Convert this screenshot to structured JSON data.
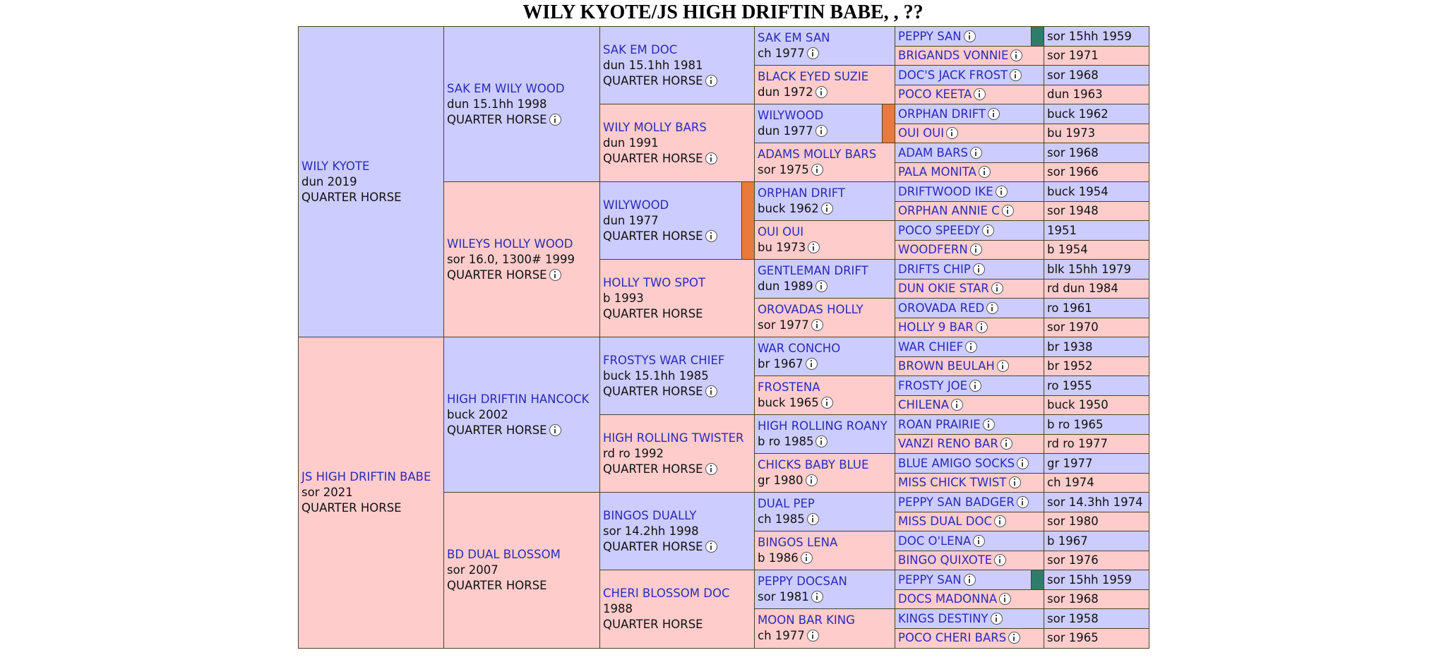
{
  "title": "WILY KYOTE/JS HIGH DRIFTIN BABE, , ??",
  "generations": [
    [
      {
        "name": "WILY KYOTE",
        "lines": [
          "dun 2019",
          "QUARTER HORSE"
        ],
        "info": false
      },
      {
        "name": "JS HIGH DRIFTIN BABE",
        "lines": [
          "sor 2021",
          "QUARTER HORSE"
        ],
        "info": false
      }
    ],
    [
      {
        "name": "SAK EM WILY WOOD",
        "lines": [
          "dun 15.1hh 1998",
          "QUARTER HORSE"
        ],
        "info": true
      },
      {
        "name": "WILEYS HOLLY WOOD",
        "lines": [
          "sor 16.0, 1300# 1999",
          "QUARTER HORSE"
        ],
        "info": true
      },
      {
        "name": "HIGH DRIFTIN HANCOCK",
        "lines": [
          "buck 2002",
          "QUARTER HORSE"
        ],
        "info": true
      },
      {
        "name": "BD DUAL BLOSSOM",
        "lines": [
          "sor 2007",
          "QUARTER HORSE"
        ],
        "info": false
      }
    ],
    [
      {
        "name": "SAK EM DOC",
        "lines": [
          "dun 15.1hh 1981",
          "QUARTER HORSE"
        ],
        "info": true
      },
      {
        "name": "WILY MOLLY BARS",
        "lines": [
          "dun 1991",
          "QUARTER HORSE"
        ],
        "info": true
      },
      {
        "name": "WILYWOOD",
        "lines": [
          "dun 1977",
          "QUARTER HORSE"
        ],
        "info": true,
        "marker": "#e87a3e"
      },
      {
        "name": "HOLLY TWO SPOT",
        "lines": [
          "b 1993",
          "QUARTER HORSE"
        ],
        "info": false
      },
      {
        "name": "FROSTYS WAR CHIEF",
        "lines": [
          "buck 15.1hh 1985",
          "QUARTER HORSE"
        ],
        "info": true
      },
      {
        "name": "HIGH ROLLING TWISTER",
        "lines": [
          "rd ro 1992",
          "QUARTER HORSE"
        ],
        "info": true
      },
      {
        "name": "BINGOS DUALLY",
        "lines": [
          "sor 14.2hh 1998",
          "QUARTER HORSE"
        ],
        "info": true
      },
      {
        "name": "CHERI BLOSSOM DOC",
        "lines": [
          "1988",
          "QUARTER HORSE"
        ],
        "info": false
      }
    ],
    [
      {
        "name": "SAK EM SAN",
        "details": "ch 1977"
      },
      {
        "name": "BLACK EYED SUZIE",
        "details": "dun 1972"
      },
      {
        "name": "WILYWOOD",
        "details": "dun 1977",
        "marker": "#e87a3e"
      },
      {
        "name": "ADAMS MOLLY BARS",
        "details": "sor 1975"
      },
      {
        "name": "ORPHAN DRIFT",
        "details": "buck 1962"
      },
      {
        "name": "OUI OUI",
        "details": "bu 1973"
      },
      {
        "name": "GENTLEMAN DRIFT",
        "details": "dun 1989"
      },
      {
        "name": "OROVADAS HOLLY",
        "details": "sor 1977"
      },
      {
        "name": "WAR CONCHO",
        "details": "br 1967"
      },
      {
        "name": "FROSTENA",
        "details": "buck 1965"
      },
      {
        "name": "HIGH ROLLING ROANY",
        "details": "b ro 1985"
      },
      {
        "name": "CHICKS BABY BLUE",
        "details": "gr 1980"
      },
      {
        "name": "DUAL PEP",
        "details": "ch 1985"
      },
      {
        "name": "BINGOS LENA",
        "details": "b 1986"
      },
      {
        "name": "PEPPY DOCSAN",
        "details": "sor 1981"
      },
      {
        "name": "MOON BAR KING",
        "details": "ch 1977"
      }
    ],
    [
      {
        "name": "PEPPY SAN",
        "details": "sor 15hh 1959",
        "marker": "#2e7d6b"
      },
      {
        "name": "BRIGANDS VONNIE",
        "details": "sor 1971"
      },
      {
        "name": "DOC'S JACK FROST",
        "details": "sor 1968"
      },
      {
        "name": "POCO KEETA",
        "details": "dun 1963"
      },
      {
        "name": "ORPHAN DRIFT",
        "details": "buck 1962"
      },
      {
        "name": "OUI OUI",
        "details": "bu 1973"
      },
      {
        "name": "ADAM BARS",
        "details": "sor 1968"
      },
      {
        "name": "PALA MONITA",
        "details": "sor 1966"
      },
      {
        "name": "DRIFTWOOD IKE",
        "details": "buck 1954"
      },
      {
        "name": "ORPHAN ANNIE C",
        "details": "sor 1948"
      },
      {
        "name": "POCO SPEEDY",
        "details": "1951"
      },
      {
        "name": "WOODFERN",
        "details": "b 1954"
      },
      {
        "name": "DRIFTS CHIP",
        "details": "blk 15hh 1979"
      },
      {
        "name": "DUN OKIE STAR",
        "details": "rd dun 1984"
      },
      {
        "name": "OROVADA RED",
        "details": "ro 1961"
      },
      {
        "name": "HOLLY 9 BAR",
        "details": "sor 1970"
      },
      {
        "name": "WAR CHIEF",
        "details": "br 1938"
      },
      {
        "name": "BROWN BEULAH",
        "details": "br 1952"
      },
      {
        "name": "FROSTY JOE",
        "details": "ro 1955"
      },
      {
        "name": "CHILENA",
        "details": "buck 1950"
      },
      {
        "name": "ROAN PRAIRIE",
        "details": "b ro 1965"
      },
      {
        "name": "VANZI RENO BAR",
        "details": "rd ro 1977"
      },
      {
        "name": "BLUE AMIGO SOCKS",
        "details": "gr 1977"
      },
      {
        "name": "MISS CHICK TWIST",
        "details": "ch 1974"
      },
      {
        "name": "PEPPY SAN BADGER",
        "details": "sor 14.3hh 1974"
      },
      {
        "name": "MISS DUAL DOC",
        "details": "sor 1980"
      },
      {
        "name": "DOC O'LENA",
        "details": "b 1967"
      },
      {
        "name": "BINGO QUIXOTE",
        "details": "sor 1976"
      },
      {
        "name": "PEPPY SAN",
        "details": "sor 15hh 1959",
        "marker": "#2e7d6b"
      },
      {
        "name": "DOCS MADONNA",
        "details": "sor 1968"
      },
      {
        "name": "KINGS DESTINY",
        "details": "sor 1958"
      },
      {
        "name": "POCO CHERI BARS",
        "details": "sor 1965"
      }
    ]
  ]
}
